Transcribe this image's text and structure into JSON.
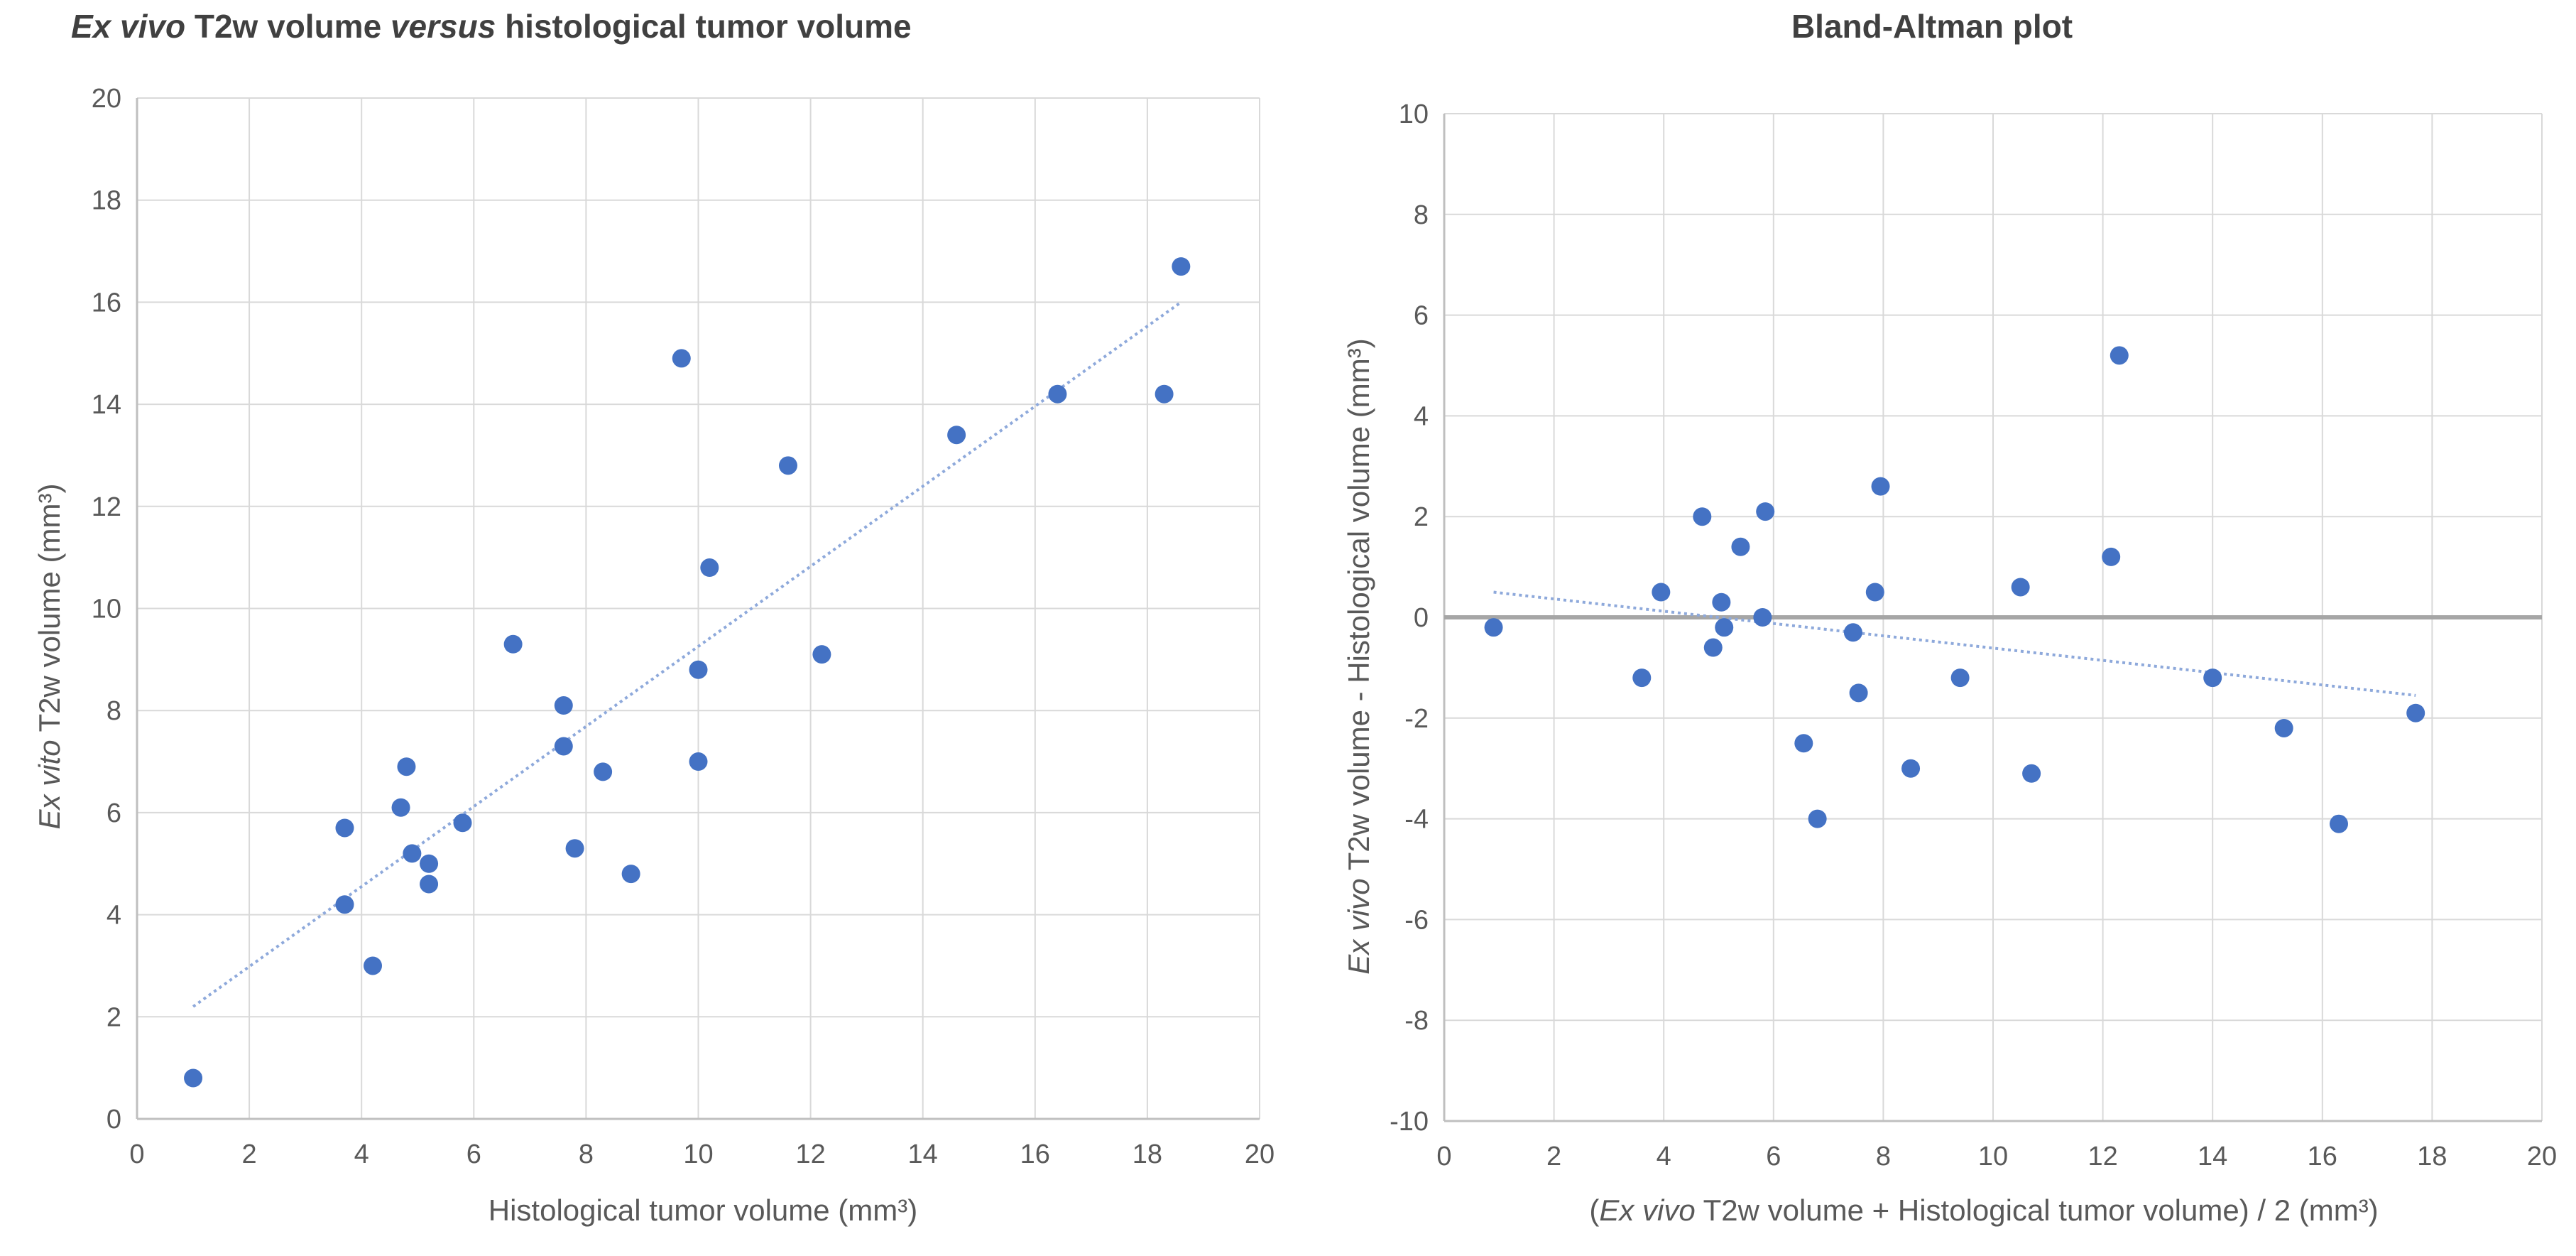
{
  "chart_data": [
    {
      "type": "scatter",
      "title": "Ex vivo T2w volume versus histological tumor volume",
      "title_parts": {
        "italic_1": "Ex vivo",
        "plain_1": " T2w volume ",
        "italic_2": "versus",
        "plain_2": " histological tumor volume"
      },
      "xlabel": "Histological tumor volume (mm³)",
      "ylabel": "Ex vito T2w volume (mm³)",
      "ylabel_parts": {
        "italic": "Ex vito",
        "plain": " T2w volume (mm³)"
      },
      "xlim": [
        0,
        20
      ],
      "ylim": [
        0,
        20
      ],
      "xticks": [
        "0",
        "2",
        "4",
        "6",
        "8",
        "10",
        "12",
        "14",
        "16",
        "18",
        "20"
      ],
      "yticks": [
        "0",
        "2",
        "4",
        "6",
        "8",
        "10",
        "12",
        "14",
        "16",
        "18",
        "20"
      ],
      "grid": true,
      "marker_color": "#4472C4",
      "trendline": {
        "x": [
          1,
          18.6
        ],
        "y": [
          2.2,
          16.0
        ],
        "color": "#8EA9DB"
      },
      "points": [
        {
          "x": 1.0,
          "y": 0.8
        },
        {
          "x": 3.7,
          "y": 5.7
        },
        {
          "x": 3.7,
          "y": 4.2
        },
        {
          "x": 4.2,
          "y": 3.0
        },
        {
          "x": 4.7,
          "y": 6.1
        },
        {
          "x": 4.8,
          "y": 6.9
        },
        {
          "x": 4.9,
          "y": 5.2
        },
        {
          "x": 5.2,
          "y": 5.0
        },
        {
          "x": 5.2,
          "y": 4.6
        },
        {
          "x": 5.8,
          "y": 5.8
        },
        {
          "x": 6.7,
          "y": 9.3
        },
        {
          "x": 7.6,
          "y": 8.1
        },
        {
          "x": 7.6,
          "y": 7.3
        },
        {
          "x": 7.8,
          "y": 5.3
        },
        {
          "x": 8.3,
          "y": 6.8
        },
        {
          "x": 8.8,
          "y": 4.8
        },
        {
          "x": 9.7,
          "y": 14.9
        },
        {
          "x": 10.0,
          "y": 8.8
        },
        {
          "x": 10.0,
          "y": 7.0
        },
        {
          "x": 10.2,
          "y": 10.8
        },
        {
          "x": 11.6,
          "y": 12.8
        },
        {
          "x": 12.2,
          "y": 9.1
        },
        {
          "x": 14.6,
          "y": 13.4
        },
        {
          "x": 16.4,
          "y": 14.2
        },
        {
          "x": 18.3,
          "y": 14.2
        },
        {
          "x": 18.6,
          "y": 16.7
        }
      ]
    },
    {
      "type": "scatter",
      "title": "Bland-Altman plot",
      "xlabel": "(Ex vivo T2w volume + Histological tumor volume) / 2 (mm³)",
      "xlabel_parts": {
        "plain_1": "(",
        "italic": "Ex vivo",
        "plain_2": " T2w volume + Histological tumor volume) / 2 (mm³)"
      },
      "ylabel": "Ex vivo T2w volume - Histological volume (mm³)",
      "ylabel_parts": {
        "italic": "Ex vivo",
        "plain": " T2w volume - Histological volume (mm³)"
      },
      "xlim": [
        0,
        20
      ],
      "ylim": [
        -10,
        10
      ],
      "xticks": [
        "0",
        "2",
        "4",
        "6",
        "8",
        "10",
        "12",
        "14",
        "16",
        "18",
        "20"
      ],
      "yticks": [
        "-10",
        "-8",
        "-6",
        "-4",
        "-2",
        "0",
        "2",
        "4",
        "6",
        "8",
        "10"
      ],
      "grid": true,
      "marker_color": "#4472C4",
      "zero_line": {
        "y": 0,
        "color": "#A6A6A6"
      },
      "trendline": {
        "x": [
          0.9,
          17.7
        ],
        "y": [
          0.5,
          -1.55
        ],
        "color": "#8EA9DB"
      },
      "points": [
        {
          "x": 0.9,
          "y": -0.2
        },
        {
          "x": 3.6,
          "y": -1.2
        },
        {
          "x": 3.95,
          "y": 0.5
        },
        {
          "x": 4.7,
          "y": 2.0
        },
        {
          "x": 4.9,
          "y": -0.6
        },
        {
          "x": 5.05,
          "y": 0.3
        },
        {
          "x": 5.1,
          "y": -0.2
        },
        {
          "x": 5.4,
          "y": 1.4
        },
        {
          "x": 5.8,
          "y": 0.0
        },
        {
          "x": 5.85,
          "y": 2.1
        },
        {
          "x": 6.55,
          "y": -2.5
        },
        {
          "x": 6.8,
          "y": -4.0
        },
        {
          "x": 7.45,
          "y": -0.3
        },
        {
          "x": 7.55,
          "y": -1.5
        },
        {
          "x": 7.85,
          "y": 0.5
        },
        {
          "x": 7.95,
          "y": 2.6
        },
        {
          "x": 8.5,
          "y": -3.0
        },
        {
          "x": 9.4,
          "y": -1.2
        },
        {
          "x": 10.5,
          "y": 0.6
        },
        {
          "x": 10.7,
          "y": -3.1
        },
        {
          "x": 12.15,
          "y": 1.2
        },
        {
          "x": 12.3,
          "y": 5.2
        },
        {
          "x": 14.0,
          "y": -1.2
        },
        {
          "x": 15.3,
          "y": -2.2
        },
        {
          "x": 16.3,
          "y": -4.1
        },
        {
          "x": 17.7,
          "y": -1.9
        }
      ]
    }
  ]
}
